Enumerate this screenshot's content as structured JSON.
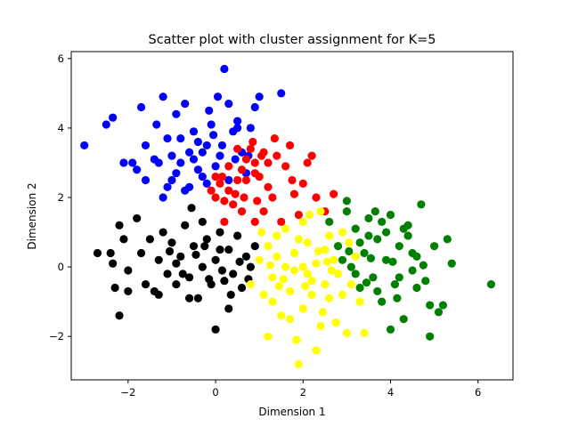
{
  "chart_data": {
    "type": "scatter",
    "title": "Scatter plot with cluster assignment for K=5",
    "xlabel": "Dimension 1",
    "ylabel": "Dimension 2",
    "xlim": [
      -3.3,
      6.8
    ],
    "ylim": [
      -3.25,
      6.2
    ],
    "xticks": [
      -2,
      0,
      2,
      4,
      6
    ],
    "yticks": [
      -2,
      0,
      2,
      4,
      6
    ],
    "xtick_labels": [
      "−2",
      "0",
      "2",
      "4",
      "6"
    ],
    "ytick_labels": [
      "−2",
      "0",
      "2",
      "4",
      "6"
    ],
    "grid": false,
    "legend": null,
    "series": [
      {
        "color": "#0000ff",
        "points": [
          [
            -3.0,
            3.5
          ],
          [
            -2.5,
            4.1
          ],
          [
            -2.35,
            4.3
          ],
          [
            -2.1,
            3.0
          ],
          [
            -1.9,
            3.0
          ],
          [
            -1.6,
            3.5
          ],
          [
            -1.7,
            4.6
          ],
          [
            -1.3,
            3.0
          ],
          [
            -1.2,
            2.0
          ],
          [
            -1.1,
            3.7
          ],
          [
            -1.0,
            3.2
          ],
          [
            -0.9,
            4.4
          ],
          [
            -0.8,
            3.0
          ],
          [
            -0.7,
            4.7
          ],
          [
            -0.6,
            2.3
          ],
          [
            -0.5,
            3.1
          ],
          [
            -0.4,
            3.6
          ],
          [
            -0.3,
            2.6
          ],
          [
            -0.2,
            3.5
          ],
          [
            -0.1,
            4.1
          ],
          [
            0.0,
            2.9
          ],
          [
            0.05,
            4.9
          ],
          [
            0.1,
            3.2
          ],
          [
            0.2,
            5.7
          ],
          [
            0.3,
            4.7
          ],
          [
            0.4,
            3.9
          ],
          [
            0.5,
            4.2
          ],
          [
            0.6,
            3.3
          ],
          [
            0.7,
            2.7
          ],
          [
            0.8,
            4.0
          ],
          [
            0.9,
            4.6
          ],
          [
            1.0,
            4.9
          ],
          [
            1.5,
            5.0
          ],
          [
            -1.1,
            2.3
          ],
          [
            -0.9,
            2.7
          ],
          [
            -0.6,
            3.3
          ],
          [
            -0.4,
            2.8
          ],
          [
            -0.2,
            2.4
          ],
          [
            -0.3,
            3.3
          ],
          [
            -1.4,
            3.1
          ],
          [
            -0.8,
            3.7
          ],
          [
            -1.6,
            2.5
          ],
          [
            -0.05,
            3.8
          ],
          [
            0.3,
            2.5
          ],
          [
            -1.2,
            4.9
          ],
          [
            0.5,
            4.0
          ],
          [
            -0.7,
            2.2
          ],
          [
            -1.0,
            2.5
          ],
          [
            -0.5,
            3.9
          ],
          [
            0.15,
            3.5
          ],
          [
            -1.35,
            4.1
          ],
          [
            -1.8,
            2.8
          ],
          [
            0.45,
            3.1
          ],
          [
            -0.15,
            4.5
          ],
          [
            0.75,
            3.2
          ]
        ]
      },
      {
        "color": "#ff0000",
        "points": [
          [
            -0.1,
            2.2
          ],
          [
            0.0,
            2.0
          ],
          [
            0.1,
            2.4
          ],
          [
            0.2,
            1.9
          ],
          [
            0.3,
            2.2
          ],
          [
            0.4,
            1.8
          ],
          [
            0.5,
            2.5
          ],
          [
            0.6,
            2.8
          ],
          [
            0.7,
            3.1
          ],
          [
            0.8,
            3.4
          ],
          [
            0.9,
            3.0
          ],
          [
            1.0,
            2.6
          ],
          [
            1.1,
            3.3
          ],
          [
            1.2,
            3.0
          ],
          [
            1.3,
            2.0
          ],
          [
            1.4,
            3.2
          ],
          [
            1.6,
            2.9
          ],
          [
            1.7,
            3.5
          ],
          [
            1.8,
            2.1
          ],
          [
            1.9,
            1.5
          ],
          [
            2.0,
            2.4
          ],
          [
            2.1,
            3.0
          ],
          [
            2.3,
            2.0
          ],
          [
            2.5,
            1.6
          ],
          [
            2.7,
            2.1
          ],
          [
            0.2,
            1.3
          ],
          [
            0.6,
            1.6
          ],
          [
            0.9,
            1.3
          ],
          [
            1.1,
            1.6
          ],
          [
            1.5,
            1.3
          ],
          [
            0.0,
            2.6
          ],
          [
            0.3,
            2.9
          ],
          [
            0.5,
            3.4
          ],
          [
            0.7,
            2.5
          ],
          [
            0.9,
            2.7
          ],
          [
            1.2,
            2.3
          ],
          [
            0.15,
            2.6
          ],
          [
            0.85,
            3.6
          ],
          [
            1.05,
            3.2
          ],
          [
            0.45,
            2.1
          ],
          [
            2.2,
            3.2
          ],
          [
            1.75,
            2.5
          ],
          [
            1.35,
            3.7
          ],
          [
            0.65,
            2.0
          ],
          [
            0.95,
            1.9
          ]
        ]
      },
      {
        "color": "#000000",
        "points": [
          [
            -2.7,
            0.4
          ],
          [
            -2.4,
            0.4
          ],
          [
            -2.3,
            -0.6
          ],
          [
            -2.2,
            -1.4
          ],
          [
            -2.0,
            -0.1
          ],
          [
            -1.8,
            1.4
          ],
          [
            -1.7,
            0.4
          ],
          [
            -1.5,
            0.8
          ],
          [
            -1.4,
            -0.7
          ],
          [
            -1.3,
            0.2
          ],
          [
            -1.2,
            1.0
          ],
          [
            -1.1,
            -0.2
          ],
          [
            -1.0,
            0.7
          ],
          [
            -0.9,
            -0.5
          ],
          [
            -0.8,
            0.3
          ],
          [
            -0.7,
            1.2
          ],
          [
            -0.6,
            -0.3
          ],
          [
            -0.5,
            0.6
          ],
          [
            -0.4,
            -0.9
          ],
          [
            -0.3,
            0.0
          ],
          [
            -0.2,
            0.8
          ],
          [
            -0.1,
            -0.5
          ],
          [
            0.0,
            0.2
          ],
          [
            0.1,
            1.0
          ],
          [
            0.2,
            -0.4
          ],
          [
            0.3,
            0.5
          ],
          [
            0.4,
            -0.2
          ],
          [
            0.5,
            0.9
          ],
          [
            0.6,
            -0.6
          ],
          [
            0.7,
            0.3
          ],
          [
            0.8,
            0.0
          ],
          [
            0.9,
            0.6
          ],
          [
            0.0,
            -1.8
          ],
          [
            0.3,
            -1.2
          ],
          [
            -0.6,
            -0.9
          ],
          [
            -1.6,
            -0.5
          ],
          [
            -2.1,
            0.8
          ],
          [
            -2.2,
            1.2
          ],
          [
            -0.3,
            1.3
          ],
          [
            0.1,
            0.5
          ],
          [
            -0.9,
            0.1
          ],
          [
            -1.3,
            -0.8
          ],
          [
            0.35,
            -0.8
          ],
          [
            -0.45,
            0.35
          ],
          [
            0.55,
            0.15
          ],
          [
            -0.75,
            -0.2
          ],
          [
            0.15,
            -0.1
          ],
          [
            -1.05,
            0.45
          ],
          [
            -0.15,
            -0.35
          ],
          [
            0.75,
            -0.35
          ],
          [
            -2.35,
            0.1
          ],
          [
            -2.0,
            -0.7
          ],
          [
            -0.55,
            1.7
          ],
          [
            -0.25,
            0.6
          ]
        ]
      },
      {
        "color": "#ffff00",
        "points": [
          [
            0.8,
            -0.5
          ],
          [
            1.0,
            0.2
          ],
          [
            1.1,
            -0.8
          ],
          [
            1.2,
            0.6
          ],
          [
            1.3,
            -0.3
          ],
          [
            1.4,
            0.9
          ],
          [
            1.5,
            -1.4
          ],
          [
            1.6,
            0.0
          ],
          [
            1.7,
            -0.7
          ],
          [
            1.8,
            0.4
          ],
          [
            1.9,
            -2.8
          ],
          [
            2.0,
            -1.2
          ],
          [
            2.1,
            0.7
          ],
          [
            2.2,
            -0.4
          ],
          [
            2.3,
            0.1
          ],
          [
            2.4,
            -1.7
          ],
          [
            2.5,
            0.5
          ],
          [
            2.6,
            -0.9
          ],
          [
            2.7,
            0.2
          ],
          [
            2.8,
            -0.2
          ],
          [
            2.9,
            1.0
          ],
          [
            3.0,
            -1.9
          ],
          [
            3.1,
            -0.5
          ],
          [
            3.2,
            0.3
          ],
          [
            3.3,
            -1.0
          ],
          [
            1.2,
            -2.0
          ],
          [
            1.6,
            1.1
          ],
          [
            2.0,
            1.3
          ],
          [
            2.4,
            1.6
          ],
          [
            1.8,
            -0.1
          ],
          [
            2.2,
            -0.8
          ],
          [
            2.6,
            0.9
          ],
          [
            1.4,
            0.3
          ],
          [
            1.9,
            0.8
          ],
          [
            2.3,
            -2.4
          ],
          [
            1.3,
            -1.0
          ],
          [
            2.1,
            -0.2
          ],
          [
            2.5,
            -0.5
          ],
          [
            2.8,
            0.6
          ],
          [
            1.7,
            -1.5
          ],
          [
            2.0,
            0.0
          ],
          [
            2.35,
            0.45
          ],
          [
            1.55,
            -0.35
          ],
          [
            2.65,
            -0.1
          ],
          [
            3.05,
            0.7
          ],
          [
            1.05,
            1.0
          ],
          [
            2.15,
            1.5
          ],
          [
            2.45,
            -1.3
          ],
          [
            1.85,
            -2.1
          ],
          [
            2.75,
            -1.6
          ],
          [
            1.25,
            0.05
          ],
          [
            2.05,
            -0.55
          ],
          [
            2.55,
            0.15
          ],
          [
            1.45,
            -0.55
          ],
          [
            2.9,
            -0.8
          ],
          [
            3.4,
            -1.9
          ]
        ]
      },
      {
        "color": "#008000",
        "points": [
          [
            2.6,
            1.3
          ],
          [
            2.8,
            0.6
          ],
          [
            3.0,
            1.6
          ],
          [
            3.1,
            0.0
          ],
          [
            3.2,
            1.1
          ],
          [
            3.3,
            -0.6
          ],
          [
            3.4,
            0.4
          ],
          [
            3.5,
            1.4
          ],
          [
            3.6,
            -0.3
          ],
          [
            3.7,
            0.8
          ],
          [
            3.8,
            -1.0
          ],
          [
            3.9,
            0.2
          ],
          [
            4.0,
            1.5
          ],
          [
            4.1,
            -0.5
          ],
          [
            4.2,
            0.6
          ],
          [
            4.3,
            -1.5
          ],
          [
            4.4,
            0.9
          ],
          [
            4.5,
            -0.1
          ],
          [
            4.6,
            0.3
          ],
          [
            4.7,
            1.8
          ],
          [
            4.8,
            -0.4
          ],
          [
            4.9,
            -1.1
          ],
          [
            5.0,
            0.6
          ],
          [
            5.1,
            -1.3
          ],
          [
            5.3,
            0.8
          ],
          [
            5.4,
            0.1
          ],
          [
            6.3,
            -0.5
          ],
          [
            4.0,
            -1.8
          ],
          [
            4.9,
            -2.0
          ],
          [
            3.0,
            1.9
          ],
          [
            3.5,
            0.9
          ],
          [
            4.3,
            1.1
          ],
          [
            3.8,
            1.3
          ],
          [
            3.2,
            -0.2
          ],
          [
            4.6,
            -0.6
          ],
          [
            3.7,
            -0.7
          ],
          [
            4.2,
            -0.3
          ],
          [
            3.3,
            0.7
          ],
          [
            4.5,
            0.4
          ],
          [
            3.9,
            1.0
          ],
          [
            2.9,
            0.2
          ],
          [
            4.05,
            0.15
          ],
          [
            3.55,
            0.25
          ],
          [
            4.15,
            -0.9
          ],
          [
            3.65,
            1.6
          ],
          [
            4.4,
            1.2
          ],
          [
            3.05,
            0.45
          ],
          [
            4.75,
            0.05
          ],
          [
            3.45,
            -0.45
          ],
          [
            5.2,
            -1.1
          ]
        ]
      }
    ]
  }
}
